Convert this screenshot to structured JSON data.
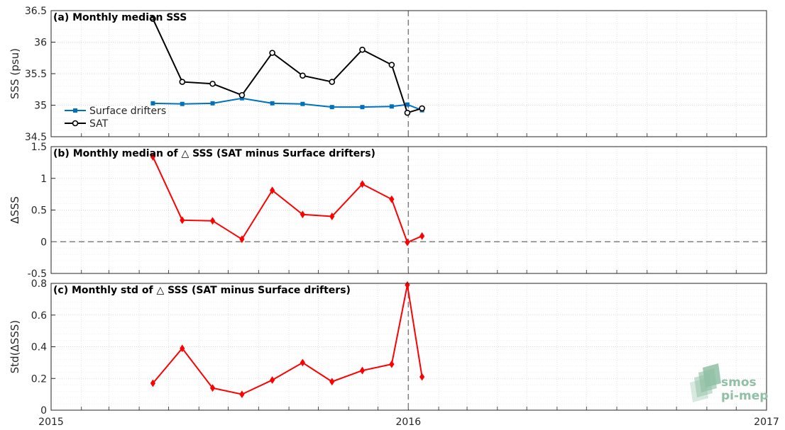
{
  "chart_data": [
    {
      "type": "line",
      "title": "(a) Monthly median SSS",
      "xlabel": "",
      "ylabel": "SSS (psu)",
      "xlim": [
        "2015-01-01",
        "2017-01-01"
      ],
      "ylim": [
        34.5,
        36.5
      ],
      "yticks": [
        "34.5",
        "35",
        "35.5",
        "36",
        "36.5"
      ],
      "x": [
        "2015-04-15",
        "2015-05-15",
        "2015-06-15",
        "2015-07-15",
        "2015-08-15",
        "2015-09-15",
        "2015-10-15",
        "2015-11-15",
        "2015-12-15",
        "2016-01-15"
      ],
      "series": [
        {
          "name": "Surface drifters",
          "color": "#0072bd",
          "marker": "square",
          "values": [
            35.03,
            35.02,
            35.03,
            35.11,
            35.03,
            35.02,
            34.97,
            34.97,
            34.98,
            35.01,
            34.92
          ],
          "x": [
            "2015-04-15",
            "2015-05-15",
            "2015-06-15",
            "2015-07-15",
            "2015-08-15",
            "2015-09-15",
            "2015-10-15",
            "2015-11-15",
            "2015-12-15",
            "2015-12-31",
            "2016-01-15"
          ]
        },
        {
          "name": "SAT",
          "color": "#000000",
          "marker": "circle",
          "values": [
            36.37,
            35.37,
            35.34,
            35.16,
            35.83,
            35.47,
            35.37,
            35.88,
            35.64,
            34.88,
            34.95
          ],
          "x": [
            "2015-04-15",
            "2015-05-15",
            "2015-06-15",
            "2015-07-15",
            "2015-08-15",
            "2015-09-15",
            "2015-10-15",
            "2015-11-15",
            "2015-12-15",
            "2015-12-31",
            "2016-01-15"
          ]
        }
      ],
      "legend": "bottom-left",
      "grid": true,
      "vline": "2016-01-01"
    },
    {
      "type": "line",
      "title": "(b) Monthly median of △ SSS (SAT minus Surface drifters)",
      "xlabel": "",
      "ylabel": "ΔSSS",
      "xlim": [
        "2015-01-01",
        "2017-01-01"
      ],
      "ylim": [
        -0.5,
        1.5
      ],
      "yticks": [
        "-0.5",
        "0",
        "0.5",
        "1",
        "1.5"
      ],
      "x": [
        "2015-04-15",
        "2015-05-15",
        "2015-06-15",
        "2015-07-15",
        "2015-08-15",
        "2015-09-15",
        "2015-10-15",
        "2015-11-15",
        "2015-12-15",
        "2015-12-31",
        "2016-01-15"
      ],
      "series": [
        {
          "color": "#ff0000",
          "marker": "diamond",
          "values": [
            1.34,
            0.34,
            0.33,
            0.04,
            0.81,
            0.43,
            0.4,
            0.91,
            0.67,
            -0.01,
            0.09
          ]
        }
      ],
      "hline": 0,
      "grid": true,
      "vline": "2016-01-01"
    },
    {
      "type": "line",
      "title": "(c) Monthly std of △ SSS (SAT minus Surface drifters)",
      "xlabel": "",
      "ylabel": "Std(ΔSSS)",
      "xlim": [
        "2015-01-01",
        "2017-01-01"
      ],
      "ylim": [
        0,
        0.8
      ],
      "yticks": [
        "0",
        "0.2",
        "0.4",
        "0.6",
        "0.8"
      ],
      "xticks": [
        "2015",
        "2016",
        "2017"
      ],
      "x": [
        "2015-04-15",
        "2015-05-15",
        "2015-06-15",
        "2015-07-15",
        "2015-08-15",
        "2015-09-15",
        "2015-10-15",
        "2015-11-15",
        "2015-12-15",
        "2015-12-31",
        "2016-01-15"
      ],
      "series": [
        {
          "color": "#ff0000",
          "marker": "diamond",
          "values": [
            0.17,
            0.39,
            0.14,
            0.1,
            0.19,
            0.3,
            0.18,
            0.25,
            0.29,
            0.79,
            0.21
          ]
        }
      ],
      "grid": true,
      "vline": "2016-01-01"
    }
  ],
  "logo": {
    "line1": "smos",
    "line2": "pi-mep",
    "color": "#8fbfa4"
  }
}
